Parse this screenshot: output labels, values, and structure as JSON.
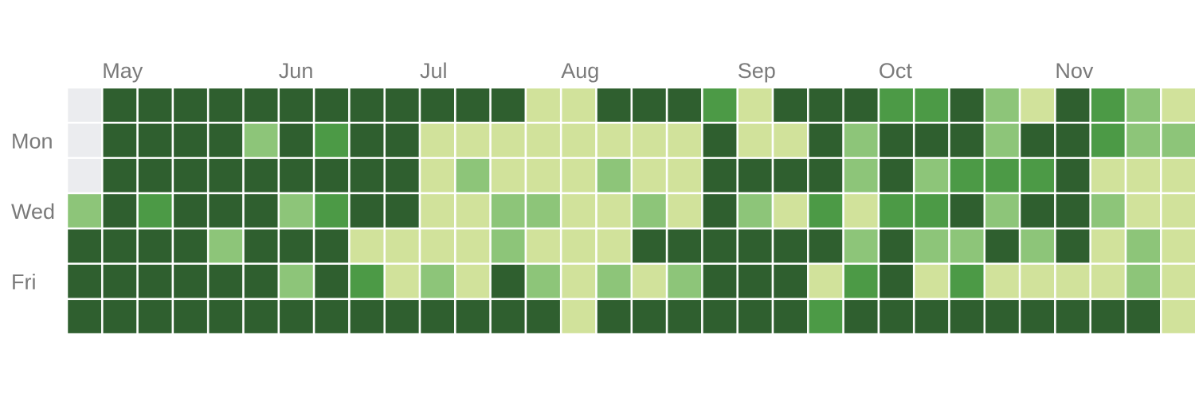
{
  "palette": {
    "empty": "#ebecef",
    "0": "#d1e29b",
    "1": "#8dc579",
    "2": "#4c9a46",
    "3": "#2f5f2f"
  },
  "chart_data": {
    "type": "heatmap",
    "title": "",
    "months": [
      "May",
      "Jun",
      "Jul",
      "Aug",
      "Sep",
      "Oct",
      "Nov"
    ],
    "month_week_index": [
      1,
      6,
      10,
      14,
      19,
      23,
      28
    ],
    "day_labels": [
      "",
      "Mon",
      "",
      "Wed",
      "",
      "Fri",
      ""
    ],
    "levels": [
      0,
      1,
      2,
      3
    ],
    "grid_rows_note": "rows are days of week (row 0 = Sun ... row 6 = Sat); columns are weeks; -1 = no data",
    "grid": [
      [
        -1,
        3,
        3,
        3,
        3,
        3,
        3,
        3,
        3,
        3,
        3,
        3,
        3,
        0,
        0,
        3,
        3,
        3,
        2,
        0,
        3,
        3,
        3,
        2,
        2,
        3,
        1,
        0,
        3,
        2,
        1,
        0
      ],
      [
        -1,
        3,
        3,
        3,
        3,
        1,
        3,
        2,
        3,
        3,
        0,
        0,
        0,
        0,
        0,
        0,
        0,
        0,
        3,
        0,
        0,
        3,
        1,
        3,
        3,
        3,
        1,
        3,
        3,
        2,
        1,
        1
      ],
      [
        -1,
        3,
        3,
        3,
        3,
        3,
        3,
        3,
        3,
        3,
        0,
        1,
        0,
        0,
        0,
        1,
        0,
        0,
        3,
        3,
        3,
        3,
        1,
        3,
        1,
        2,
        2,
        2,
        3,
        0,
        0,
        0
      ],
      [
        1,
        3,
        2,
        3,
        3,
        3,
        1,
        2,
        3,
        3,
        0,
        0,
        1,
        1,
        0,
        0,
        1,
        0,
        3,
        1,
        0,
        2,
        0,
        2,
        2,
        3,
        1,
        3,
        3,
        1,
        0,
        0
      ],
      [
        3,
        3,
        3,
        3,
        1,
        3,
        3,
        3,
        0,
        0,
        0,
        0,
        1,
        0,
        0,
        0,
        3,
        3,
        3,
        3,
        3,
        3,
        1,
        3,
        1,
        1,
        3,
        1,
        3,
        0,
        1,
        0
      ],
      [
        3,
        3,
        3,
        3,
        3,
        3,
        1,
        3,
        2,
        0,
        1,
        0,
        3,
        1,
        0,
        1,
        0,
        1,
        3,
        3,
        3,
        0,
        2,
        3,
        0,
        2,
        0,
        0,
        0,
        0,
        1,
        0
      ],
      [
        3,
        3,
        3,
        3,
        3,
        3,
        3,
        3,
        3,
        3,
        3,
        3,
        3,
        3,
        0,
        3,
        3,
        3,
        3,
        3,
        3,
        2,
        3,
        3,
        3,
        3,
        3,
        3,
        3,
        3,
        3,
        0
      ]
    ],
    "grid_lines": true,
    "legend": "none"
  }
}
